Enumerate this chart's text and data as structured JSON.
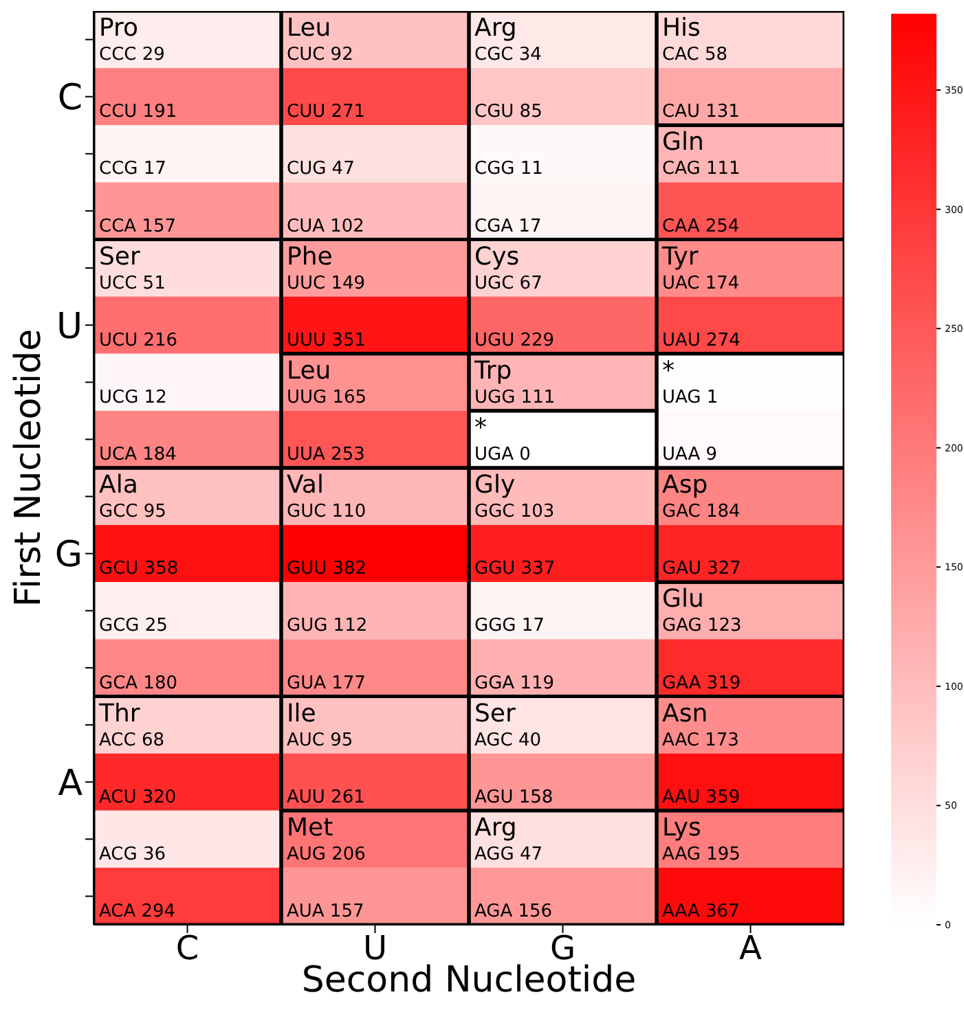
{
  "chart_data": {
    "type": "heatmap",
    "xlabel": "Second Nucleotide",
    "ylabel": "First Nucleotide",
    "categories": [
      "C",
      "U",
      "G",
      "A"
    ],
    "y_categories": [
      null,
      "C",
      null,
      null,
      null,
      "U",
      null,
      null,
      null,
      "G",
      null,
      null,
      null,
      "A",
      null,
      null
    ],
    "cells": [
      [
        29,
        92,
        34,
        58
      ],
      [
        191,
        271,
        85,
        131
      ],
      [
        17,
        47,
        11,
        111
      ],
      [
        157,
        102,
        17,
        254
      ],
      [
        51,
        149,
        67,
        174
      ],
      [
        216,
        351,
        229,
        274
      ],
      [
        12,
        165,
        111,
        1
      ],
      [
        184,
        253,
        0,
        9
      ],
      [
        95,
        110,
        103,
        184
      ],
      [
        358,
        382,
        337,
        327
      ],
      [
        25,
        112,
        17,
        123
      ],
      [
        180,
        177,
        119,
        319
      ],
      [
        68,
        95,
        40,
        173
      ],
      [
        320,
        261,
        158,
        359
      ],
      [
        36,
        206,
        47,
        195
      ],
      [
        294,
        157,
        156,
        367
      ]
    ],
    "cell_labels": [
      [
        "Pro\nCCC 29",
        "Leu\nCUC 92",
        "Arg\nCGC 34",
        "His\nCAC 58"
      ],
      [
        "CCU 191",
        "CUU 271",
        "CGU 85",
        "CAU 131"
      ],
      [
        "CCG 17",
        "CUG 47",
        "CGG 11",
        "Gln\nCAG 111"
      ],
      [
        "CCA 157",
        "CUA 102",
        "CGA 17",
        "CAA 254"
      ],
      [
        "Ser\nUCC 51",
        "Phe\nUUC 149",
        "Cys\nUGC 67",
        "Tyr\nUAC 174"
      ],
      [
        "UCU 216",
        "UUU 351",
        "UGU 229",
        "UAU 274"
      ],
      [
        "UCG 12",
        "Leu\nUUG 165",
        "Trp\nUGG 111",
        "*\nUAG 1"
      ],
      [
        "UCA 184",
        "UUA 253",
        "*\nUGA 0",
        "UAA 9"
      ],
      [
        "Ala\nGCC 95",
        "Val\nGUC 110",
        "Gly\nGGC 103",
        "Asp\nGAC 184"
      ],
      [
        "GCU 358",
        "GUU 382",
        "GGU 337",
        "GAU 327"
      ],
      [
        "GCG 25",
        "GUG 112",
        "GGG 17",
        "Glu\nGAG 123"
      ],
      [
        "GCA 180",
        "GUA 177",
        "GGA 119",
        "GAA 319"
      ],
      [
        "Thr\nACC 68",
        "Ile\nAUC 95",
        "Ser\nAGC 40",
        "Asn\nAAC 173"
      ],
      [
        "ACU 320",
        "AUU 261",
        "AGU 158",
        "AAU 359"
      ],
      [
        "ACG 36",
        "Met\nAUG 206",
        "Arg\nAGG 47",
        "Lys\nAAG 195"
      ],
      [
        "ACA 294",
        "AUA 157",
        "AGA 156",
        "AAA 367"
      ]
    ],
    "clim": [
      0,
      382
    ],
    "cticks": [
      0,
      50,
      100,
      150,
      200,
      250,
      300,
      350
    ]
  }
}
